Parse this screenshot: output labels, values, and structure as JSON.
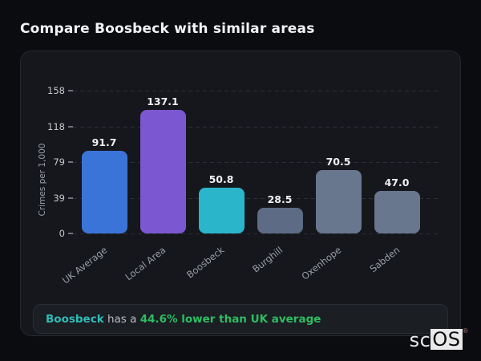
{
  "page": {
    "title": "Compare Boosbeck with similar areas"
  },
  "chart_data": {
    "type": "bar",
    "categories": [
      "UK Average",
      "Local Area",
      "Boosbeck",
      "Burghill",
      "Oxenhope",
      "Sabden"
    ],
    "values": [
      91.7,
      137.1,
      50.8,
      28.5,
      70.5,
      47.0
    ],
    "value_labels": [
      "91.7",
      "137.1",
      "50.8",
      "28.5",
      "70.5",
      "47.0"
    ],
    "bar_colors": [
      "#3b74d8",
      "#7b57d2",
      "#2ab5cb",
      "#5d6b84",
      "#68768e",
      "#68768e"
    ],
    "title": "",
    "xlabel": "",
    "ylabel": "Crimes per 1,000",
    "yticks": [
      0,
      39,
      79,
      118,
      158
    ],
    "ylim": [
      0,
      158
    ],
    "grid": "dashed-horizontal",
    "legend": "none",
    "background": "#15171c"
  },
  "note": {
    "area": "Boosbeck",
    "middle": " has a ",
    "highlight": "44.6% lower than UK average",
    "area_color": "#2fbdb9",
    "highlight_color": "#2dbd62"
  },
  "logo": {
    "prefix": "sc",
    "suffix": "OS",
    "registered": "®"
  },
  "colors": {
    "page_background": "#0b0c10",
    "card_background": "#15171c",
    "card_border": "#26282e",
    "note_background": "#1b1e23",
    "tick_text": "#c6c9ce",
    "axis_label_text": "#9aa0a8",
    "value_label_text": "#eef0f2"
  }
}
